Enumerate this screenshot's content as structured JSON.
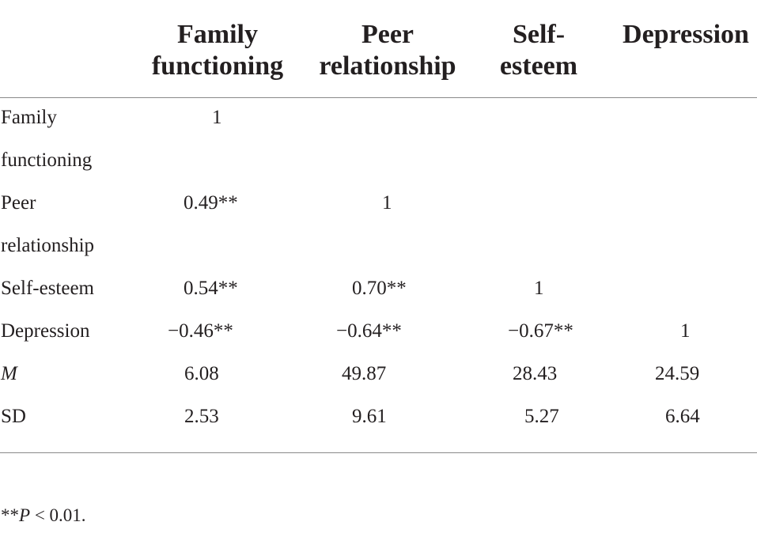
{
  "table": {
    "headers": [
      {
        "line1": "Family",
        "line2": "functioning"
      },
      {
        "line1": "Peer",
        "line2": "relationship"
      },
      {
        "line1": "Self-",
        "line2": "esteem"
      },
      {
        "line1": "Depression",
        "line2": ""
      }
    ],
    "rows": [
      {
        "label1": "Family",
        "label2": "functioning",
        "cells": [
          "1",
          "",
          "",
          ""
        ]
      },
      {
        "label1": "Peer",
        "label2": "relationship",
        "cells": [
          "0.49**",
          "1",
          "",
          ""
        ]
      },
      {
        "label1": "Self-esteem",
        "label2": "",
        "cells": [
          "0.54**",
          "0.70**",
          "1",
          ""
        ]
      },
      {
        "label1": "Depression",
        "label2": "",
        "cells": [
          "−0.46**",
          "−0.64**",
          "−0.67**",
          "1"
        ]
      },
      {
        "label1": "M",
        "label2": "",
        "cells": [
          "6.08",
          "49.87",
          "28.43",
          "24.59"
        ]
      },
      {
        "label1": "SD",
        "label2": "",
        "cells": [
          "2.53",
          "9.61",
          "5.27",
          "6.64"
        ]
      }
    ]
  },
  "footnote": {
    "stars": "**",
    "p": "P",
    "rest": " < 0.01."
  }
}
